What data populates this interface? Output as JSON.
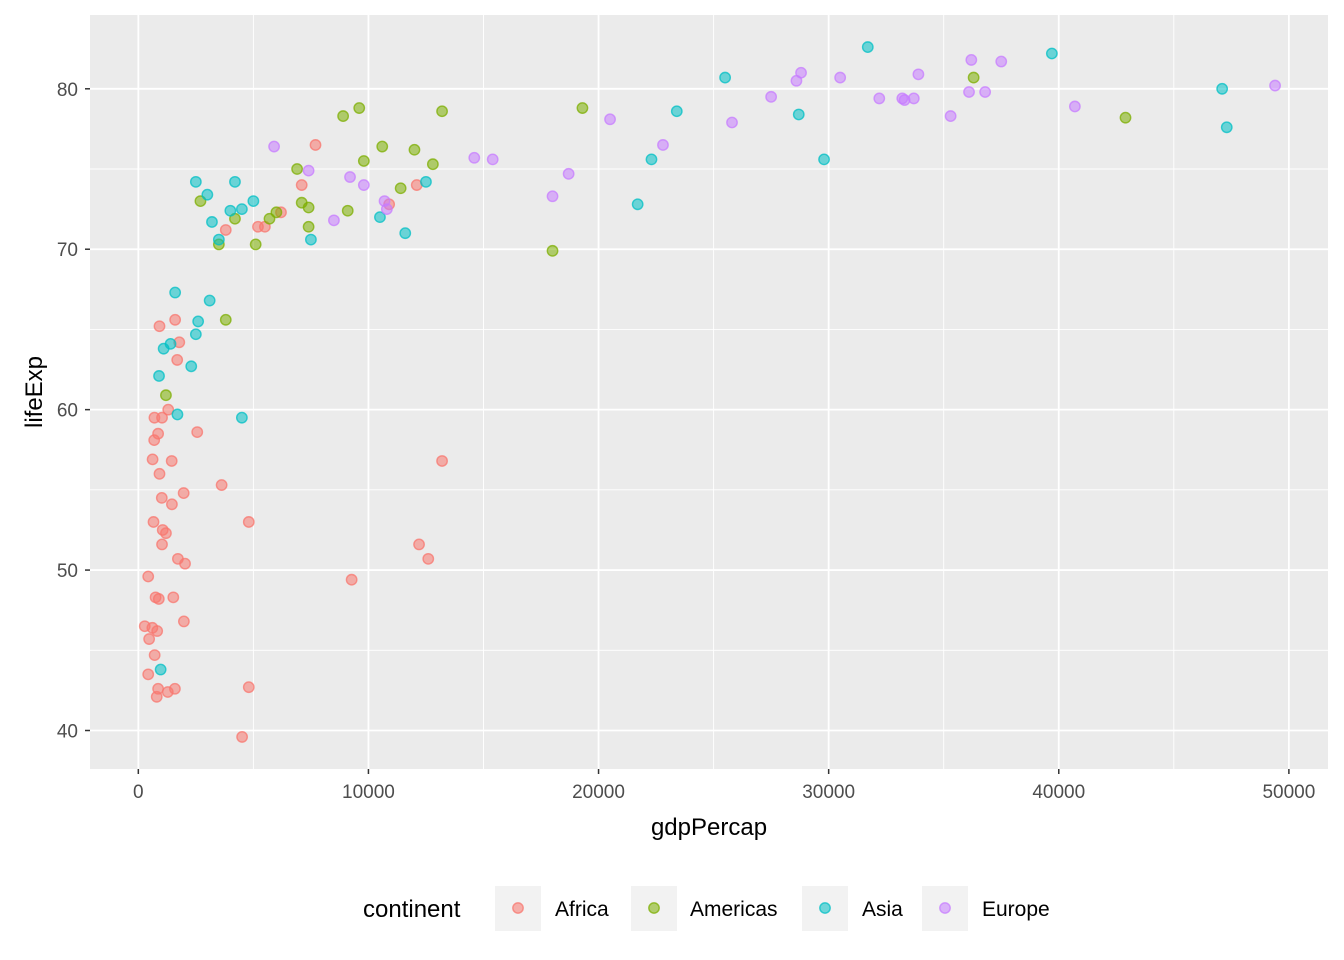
{
  "chart_data": {
    "type": "scatter",
    "xlabel": "gdpPercap",
    "ylabel": "lifeExp",
    "xlim": [
      -2100,
      51700
    ],
    "ylim": [
      37.6,
      84.6
    ],
    "xticks": [
      0,
      10000,
      20000,
      30000,
      40000,
      50000
    ],
    "xtick_labels": [
      "0",
      "10000",
      "20000",
      "30000",
      "40000",
      "50000"
    ],
    "yticks": [
      40,
      50,
      60,
      70,
      80
    ],
    "ytick_labels": [
      "40",
      "50",
      "60",
      "70",
      "80"
    ],
    "grid": true,
    "legend": {
      "title": "continent",
      "placement": "bottom"
    },
    "series": [
      {
        "name": "Africa",
        "color": "#F8766D",
        "points": [
          [
            5200,
            71.4
          ],
          [
            5500,
            71.4
          ],
          [
            6200,
            72.3
          ],
          [
            7100,
            74.0
          ],
          [
            7700,
            76.5
          ],
          [
            3800,
            71.2
          ],
          [
            12100,
            74.0
          ],
          [
            10900,
            72.8
          ],
          [
            920,
            65.2
          ],
          [
            1600,
            65.6
          ],
          [
            1780,
            64.2
          ],
          [
            1690,
            63.1
          ],
          [
            1300,
            60.0
          ],
          [
            1030,
            59.5
          ],
          [
            700,
            59.5
          ],
          [
            860,
            58.5
          ],
          [
            2560,
            58.6
          ],
          [
            690,
            58.1
          ],
          [
            620,
            56.9
          ],
          [
            1450,
            56.8
          ],
          [
            13200,
            56.8
          ],
          [
            920,
            56.0
          ],
          [
            3620,
            55.3
          ],
          [
            1020,
            54.5
          ],
          [
            1460,
            54.1
          ],
          [
            1970,
            54.8
          ],
          [
            660,
            53.0
          ],
          [
            4800,
            53.0
          ],
          [
            1060,
            52.5
          ],
          [
            1200,
            52.3
          ],
          [
            1030,
            51.6
          ],
          [
            12200,
            51.6
          ],
          [
            12600,
            50.7
          ],
          [
            1720,
            50.7
          ],
          [
            2030,
            50.4
          ],
          [
            430,
            49.6
          ],
          [
            9270,
            49.4
          ],
          [
            750,
            48.3
          ],
          [
            890,
            48.2
          ],
          [
            1520,
            48.3
          ],
          [
            1980,
            46.8
          ],
          [
            280,
            46.5
          ],
          [
            610,
            46.4
          ],
          [
            820,
            46.2
          ],
          [
            470,
            45.7
          ],
          [
            710,
            44.7
          ],
          [
            430,
            43.5
          ],
          [
            4800,
            42.7
          ],
          [
            1590,
            42.6
          ],
          [
            860,
            42.6
          ],
          [
            1280,
            42.4
          ],
          [
            800,
            42.1
          ],
          [
            4510,
            39.6
          ]
        ]
      },
      {
        "name": "Americas",
        "color": "#7CAE00",
        "points": [
          [
            9600,
            78.8
          ],
          [
            8900,
            78.3
          ],
          [
            13200,
            78.6
          ],
          [
            19300,
            78.8
          ],
          [
            36300,
            80.7
          ],
          [
            42900,
            78.2
          ],
          [
            10600,
            76.4
          ],
          [
            12000,
            76.2
          ],
          [
            9800,
            75.5
          ],
          [
            12800,
            75.3
          ],
          [
            6900,
            75.0
          ],
          [
            7100,
            72.9
          ],
          [
            7400,
            72.6
          ],
          [
            9100,
            72.4
          ],
          [
            11400,
            73.8
          ],
          [
            2700,
            73.0
          ],
          [
            5700,
            71.9
          ],
          [
            6000,
            72.3
          ],
          [
            7400,
            71.4
          ],
          [
            4200,
            71.9
          ],
          [
            3500,
            70.3
          ],
          [
            5100,
            70.3
          ],
          [
            18000,
            69.9
          ],
          [
            3800,
            65.6
          ],
          [
            1200,
            60.9
          ]
        ]
      },
      {
        "name": "Asia",
        "color": "#00BFC4",
        "points": [
          [
            31700,
            82.6
          ],
          [
            39700,
            82.2
          ],
          [
            25500,
            80.7
          ],
          [
            47100,
            80.0
          ],
          [
            47300,
            77.6
          ],
          [
            28700,
            78.4
          ],
          [
            23400,
            78.6
          ],
          [
            22300,
            75.6
          ],
          [
            29800,
            75.6
          ],
          [
            21700,
            72.8
          ],
          [
            12500,
            74.2
          ],
          [
            10500,
            72.0
          ],
          [
            11600,
            71.0
          ],
          [
            2500,
            74.2
          ],
          [
            4200,
            74.2
          ],
          [
            3000,
            73.4
          ],
          [
            5000,
            73.0
          ],
          [
            4000,
            72.4
          ],
          [
            4500,
            72.5
          ],
          [
            3200,
            71.7
          ],
          [
            3500,
            70.6
          ],
          [
            7500,
            70.6
          ],
          [
            1600,
            67.3
          ],
          [
            3100,
            66.8
          ],
          [
            2600,
            65.5
          ],
          [
            2500,
            64.7
          ],
          [
            1400,
            64.1
          ],
          [
            1100,
            63.8
          ],
          [
            2300,
            62.7
          ],
          [
            900,
            62.1
          ],
          [
            1700,
            59.7
          ],
          [
            4500,
            59.5
          ],
          [
            970,
            43.8
          ]
        ]
      },
      {
        "name": "Europe",
        "color": "#C77CFF",
        "points": [
          [
            49400,
            80.2
          ],
          [
            36200,
            81.8
          ],
          [
            37500,
            81.7
          ],
          [
            33900,
            80.9
          ],
          [
            28800,
            81.0
          ],
          [
            28600,
            80.5
          ],
          [
            30500,
            80.7
          ],
          [
            36100,
            79.8
          ],
          [
            36800,
            79.8
          ],
          [
            27500,
            79.5
          ],
          [
            32200,
            79.4
          ],
          [
            33200,
            79.4
          ],
          [
            33700,
            79.4
          ],
          [
            33300,
            79.3
          ],
          [
            40700,
            78.9
          ],
          [
            35300,
            78.3
          ],
          [
            20500,
            78.1
          ],
          [
            25800,
            77.9
          ],
          [
            22800,
            76.5
          ],
          [
            14600,
            75.7
          ],
          [
            15400,
            75.6
          ],
          [
            5900,
            76.4
          ],
          [
            7400,
            74.9
          ],
          [
            18700,
            74.7
          ],
          [
            9200,
            74.5
          ],
          [
            9800,
            74.0
          ],
          [
            18000,
            73.3
          ],
          [
            10700,
            73.0
          ],
          [
            10800,
            72.5
          ],
          [
            8500,
            71.8
          ]
        ]
      }
    ]
  }
}
